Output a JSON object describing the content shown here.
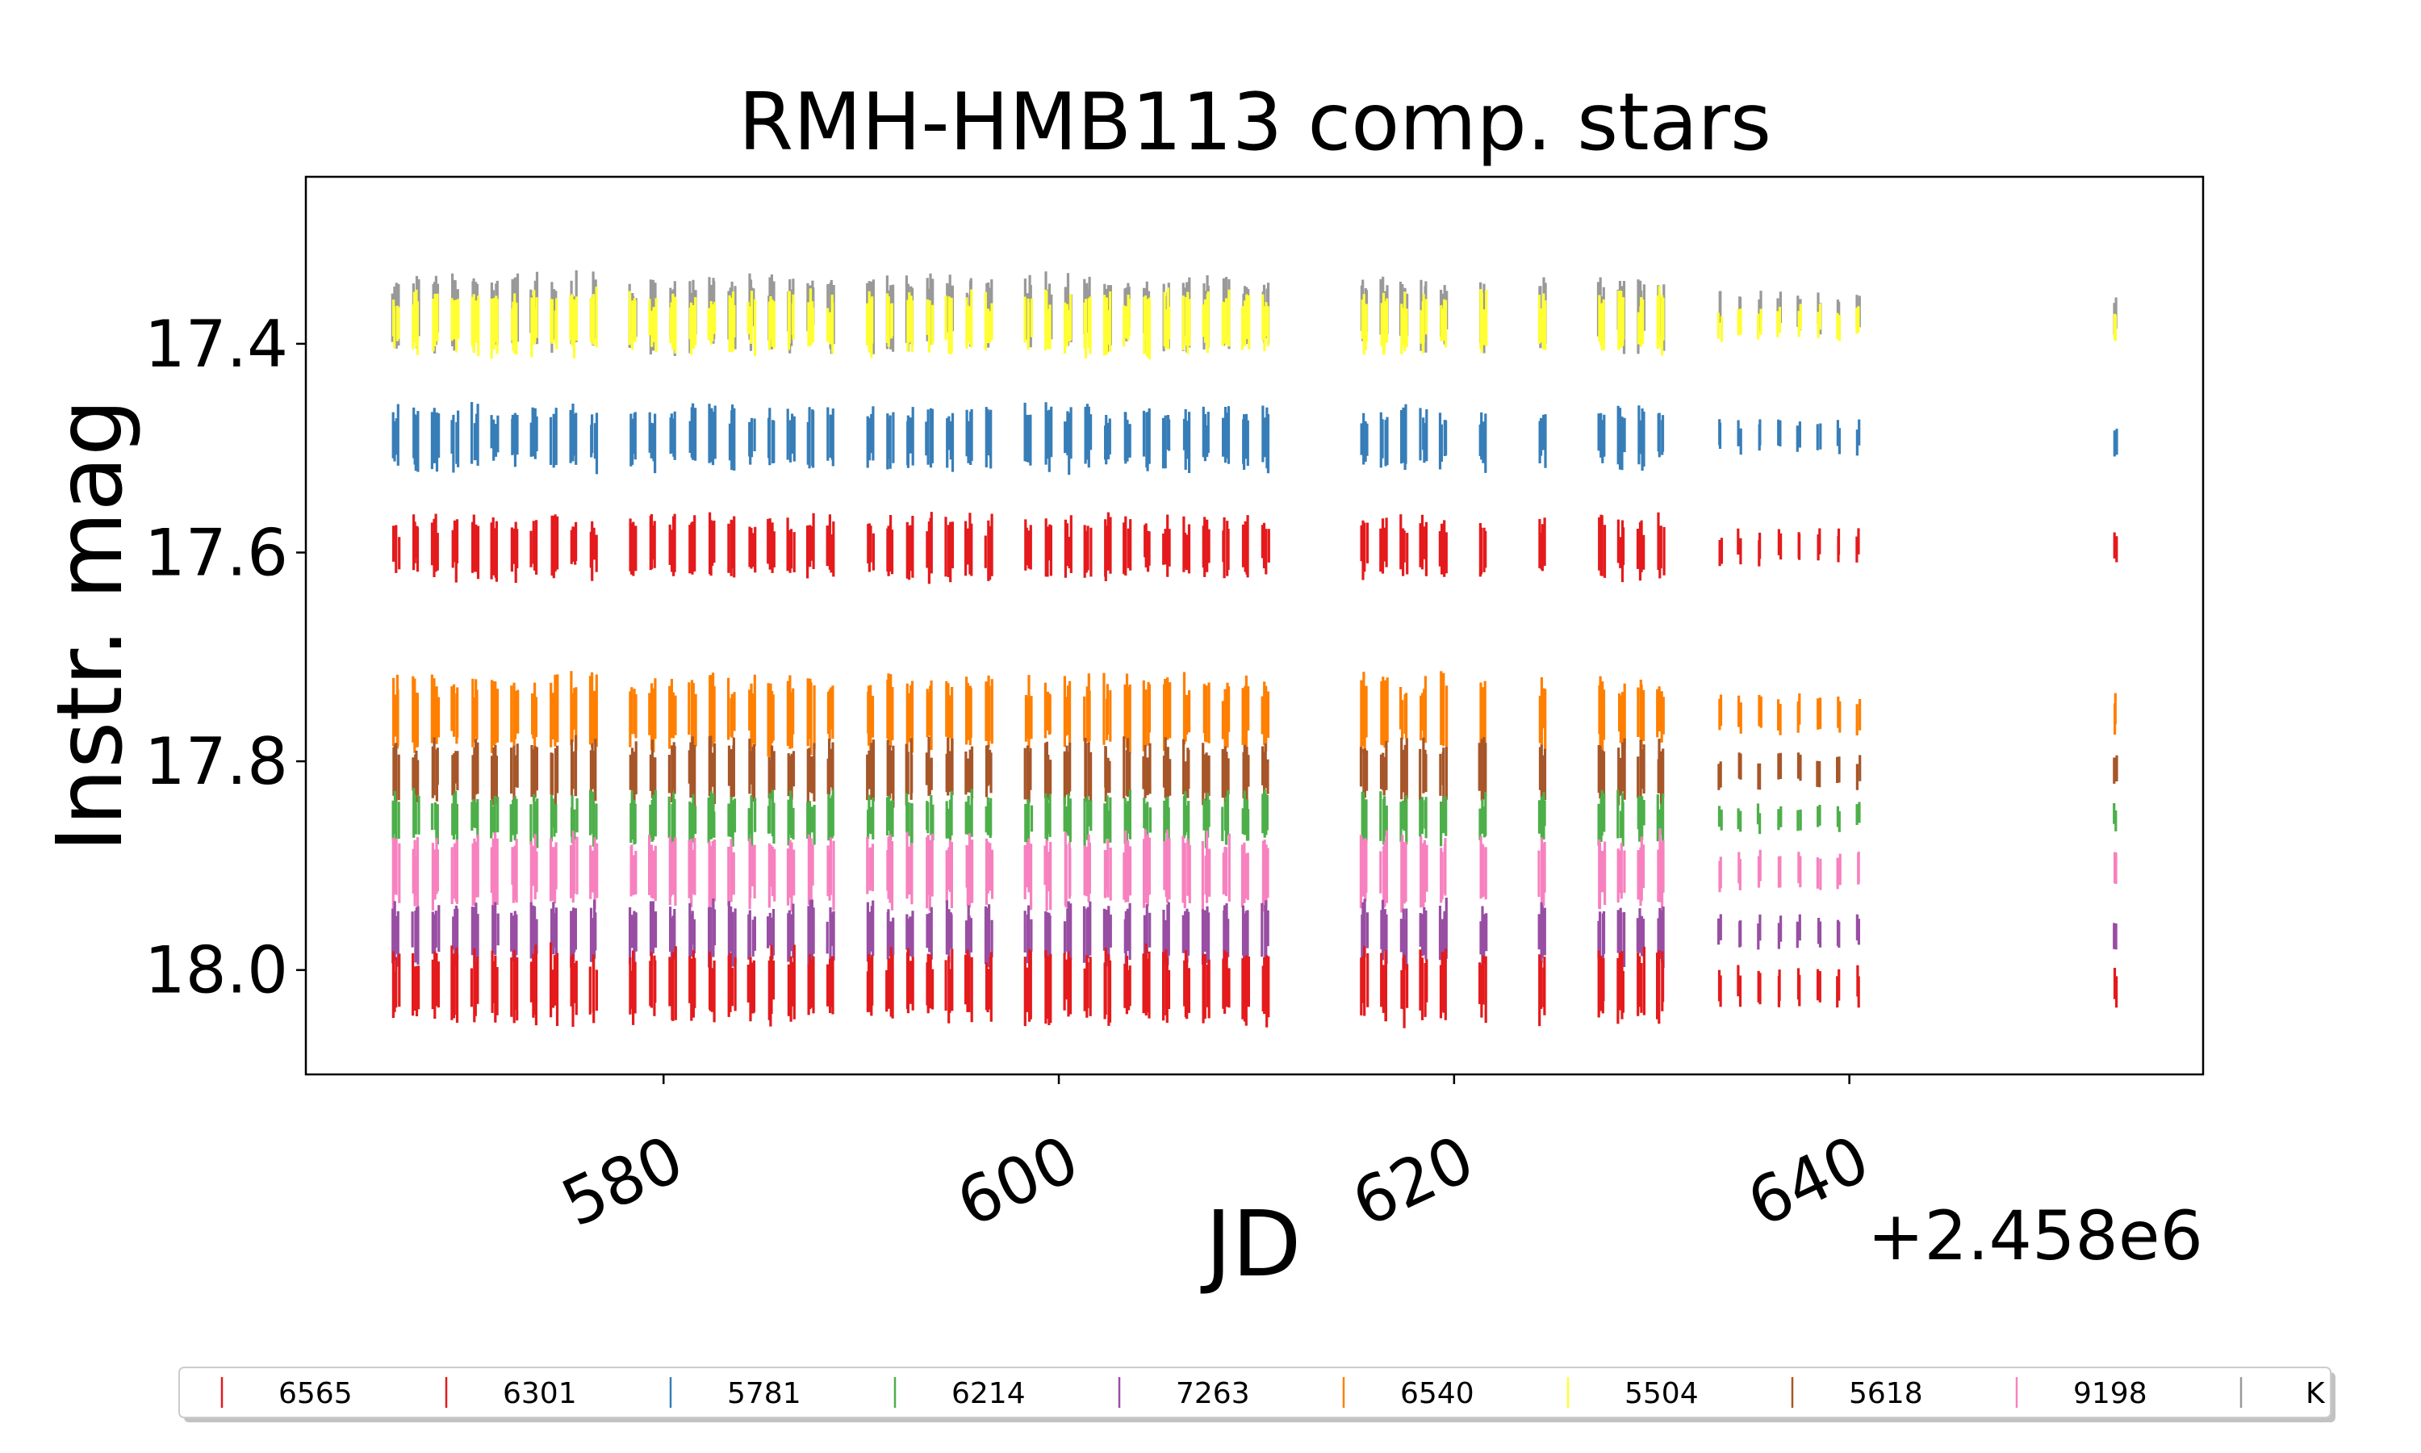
{
  "chart_data": {
    "type": "scatter",
    "title": "RMH-HMB113 comp. stars",
    "xlabel": "JD",
    "ylabel": "Instr. mag",
    "x_offset_label": "+2.458e6",
    "xlim": [
      561.9,
      657.9
    ],
    "ylim": [
      18.1,
      17.24
    ],
    "y_inverted": true,
    "xticks": [
      580,
      600,
      620,
      640
    ],
    "xtick_labels": [
      "580",
      "600",
      "620",
      "640"
    ],
    "yticks": [
      17.4,
      17.6,
      17.8,
      18.0
    ],
    "ytick_labels": [
      "17.4",
      "17.6",
      "17.8",
      "18.0"
    ],
    "grid": false,
    "legend_placement": "bottom, below plot, single row",
    "nights_jd": [
      566.5,
      567.5,
      568.5,
      569.5,
      570.5,
      571.5,
      572.5,
      573.5,
      574.5,
      575.5,
      576.5,
      578.5,
      579.5,
      580.5,
      581.5,
      582.5,
      583.5,
      584.5,
      585.5,
      586.5,
      587.5,
      588.5,
      590.5,
      591.5,
      592.5,
      593.5,
      594.5,
      595.5,
      596.5,
      598.5,
      599.5,
      600.5,
      601.5,
      602.5,
      603.5,
      604.5,
      605.5,
      606.5,
      607.5,
      608.5,
      609.5,
      610.5,
      615.5,
      616.5,
      617.5,
      618.5,
      619.5,
      621.5,
      624.5,
      627.5,
      628.5,
      629.5,
      630.5,
      633.5,
      634.5,
      635.5,
      636.5,
      637.5,
      638.5,
      639.5,
      640.5,
      653.5
    ],
    "series": [
      {
        "name": "6565",
        "color": "#e41a1c",
        "mean_mag": 18.015,
        "spread": 0.03
      },
      {
        "name": "6301",
        "color": "#e41a1c",
        "mean_mag": 17.595,
        "spread": 0.025
      },
      {
        "name": "5781",
        "color": "#377eb8",
        "mean_mag": 17.49,
        "spread": 0.025
      },
      {
        "name": "6214",
        "color": "#4daf4a",
        "mean_mag": 17.855,
        "spread": 0.02
      },
      {
        "name": "7263",
        "color": "#984ea3",
        "mean_mag": 17.965,
        "spread": 0.025
      },
      {
        "name": "6540",
        "color": "#ff7f00",
        "mean_mag": 17.755,
        "spread": 0.03
      },
      {
        "name": "5504",
        "color": "#ffff33",
        "mean_mag": 17.38,
        "spread": 0.025
      },
      {
        "name": "5618",
        "color": "#a65628",
        "mean_mag": 17.81,
        "spread": 0.025
      },
      {
        "name": "9198",
        "color": "#f781bf",
        "mean_mag": 17.905,
        "spread": 0.03
      },
      {
        "name": "K",
        "color": "#999999",
        "mean_mag": 17.37,
        "spread": 0.03
      }
    ]
  }
}
